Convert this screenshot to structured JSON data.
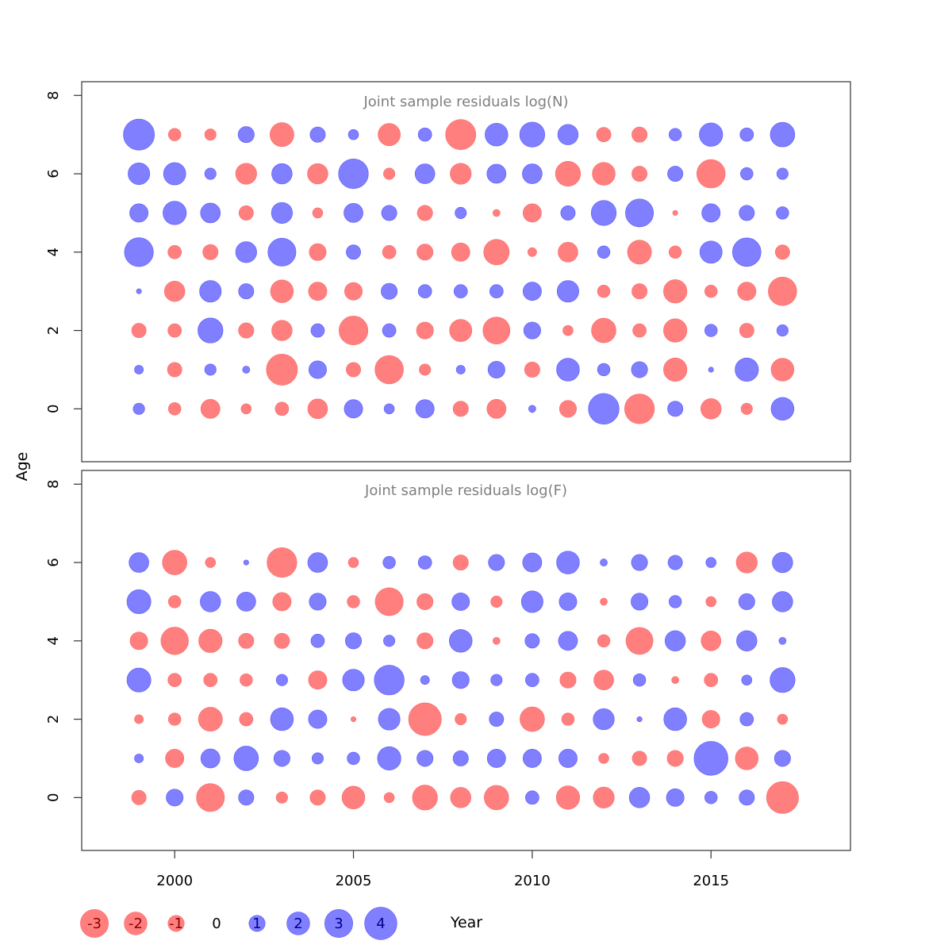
{
  "chart_data": {
    "type": "scatter",
    "xlabel": "Year",
    "ylabel": "Age",
    "x_ticks": [
      2000,
      2005,
      2010,
      2015
    ],
    "y_ticks": [
      0,
      2,
      4,
      6,
      8
    ],
    "xlim": [
      1997.4,
      2018.9
    ],
    "ylim": [
      -1.35,
      8.35
    ],
    "colors": {
      "positive": "#7f7fff",
      "negative": "#ff7f7f",
      "positive_text": "#00008b",
      "negative_text": "#8b0000"
    },
    "years": [
      1999,
      2000,
      2001,
      2002,
      2003,
      2004,
      2005,
      2006,
      2007,
      2008,
      2009,
      2010,
      2011,
      2012,
      2013,
      2014,
      2015,
      2016,
      2017
    ],
    "panels": [
      {
        "title": "Joint sample residuals log(N)",
        "ages": [
          0,
          1,
          2,
          3,
          4,
          5,
          6,
          7
        ],
        "residuals": [
          [
            0.5,
            -0.6,
            -1.4,
            -0.4,
            -0.7,
            -1.5,
            1.3,
            0.4,
            1.3,
            -0.9,
            -1.4,
            0.2,
            -1.1,
            3.6,
            -3.4,
            0.9,
            -1.6,
            -0.5,
            2.0
          ],
          [
            0.3,
            -0.8,
            0.5,
            0.2,
            -3.7,
            1.2,
            -0.8,
            -3.1,
            -0.5,
            0.3,
            1.1,
            -0.9,
            2.0,
            0.6,
            1.0,
            -2.1,
            0.1,
            2.1,
            -2.0
          ],
          [
            -0.8,
            -0.7,
            2.4,
            -0.9,
            -1.6,
            0.7,
            -3.2,
            0.7,
            -1.1,
            -1.9,
            -2.8,
            1.1,
            -0.4,
            -2.3,
            -0.7,
            -2.1,
            0.6,
            -0.8,
            0.5
          ],
          [
            0.1,
            -1.6,
            1.8,
            0.9,
            -2.0,
            -1.3,
            -1.2,
            1.0,
            0.7,
            0.7,
            0.7,
            1.3,
            1.8,
            -0.6,
            -0.9,
            -2.1,
            -0.6,
            -1.3,
            -3.1
          ],
          [
            3.2,
            -0.7,
            -0.9,
            1.7,
            3.0,
            -1.1,
            0.8,
            -0.7,
            -1.0,
            -1.3,
            -2.5,
            -0.3,
            -1.5,
            0.6,
            -2.2,
            -0.6,
            1.9,
            3.1,
            -0.8
          ],
          [
            1.3,
            2.1,
            1.5,
            -0.8,
            1.7,
            -0.4,
            1.4,
            0.9,
            -0.9,
            0.5,
            -0.2,
            -1.3,
            0.8,
            2.4,
            3.0,
            -0.1,
            1.3,
            0.9,
            0.6
          ],
          [
            1.8,
            1.9,
            0.5,
            -1.7,
            1.6,
            -1.6,
            3.4,
            -0.5,
            1.5,
            -1.7,
            1.4,
            1.5,
            -2.4,
            -2.0,
            -0.9,
            0.9,
            -3.1,
            0.6,
            0.5
          ],
          [
            3.7,
            -0.6,
            -0.5,
            1.0,
            -2.2,
            0.9,
            0.4,
            -1.9,
            0.7,
            -3.5,
            2.0,
            2.4,
            1.6,
            -0.8,
            -0.9,
            0.6,
            2.1,
            0.7,
            2.3
          ]
        ]
      },
      {
        "title": "Joint sample residuals log(F)",
        "ages": [
          0,
          1,
          2,
          3,
          4,
          5,
          6
        ],
        "residuals": [
          [
            -0.8,
            1.1,
            -3.0,
            0.9,
            -0.5,
            -0.9,
            -2.0,
            -0.4,
            -2.4,
            -1.6,
            -2.3,
            0.7,
            -2.1,
            -1.7,
            1.6,
            1.2,
            0.6,
            0.9,
            -3.9
          ],
          [
            0.3,
            -1.3,
            1.4,
            2.3,
            1.0,
            0.5,
            0.6,
            2.1,
            1.0,
            0.9,
            1.3,
            1.3,
            1.3,
            -0.4,
            -0.8,
            -1.0,
            4.4,
            -2.0,
            1.0
          ],
          [
            -0.3,
            -0.6,
            -2.2,
            -0.7,
            2.0,
            1.3,
            -0.1,
            1.8,
            -4.1,
            -0.5,
            0.8,
            -2.3,
            -0.6,
            1.7,
            0.1,
            2.0,
            -1.2,
            0.7,
            -0.4
          ],
          [
            2.2,
            -0.7,
            -0.7,
            -0.6,
            0.5,
            -1.3,
            1.8,
            3.4,
            0.3,
            1.1,
            0.5,
            0.7,
            -1.0,
            -1.5,
            0.6,
            -0.2,
            -0.7,
            0.4,
            2.4
          ],
          [
            -1.2,
            -2.9,
            -2.1,
            -0.9,
            -0.9,
            0.7,
            1.0,
            0.5,
            -1.0,
            2.0,
            -0.2,
            0.8,
            1.4,
            -0.6,
            -2.8,
            1.6,
            -1.5,
            1.6,
            0.2
          ],
          [
            2.2,
            -0.6,
            1.6,
            1.4,
            -1.3,
            1.1,
            -0.6,
            -3.0,
            -1.0,
            1.2,
            -0.5,
            1.8,
            1.2,
            -0.2,
            1.1,
            0.6,
            -0.4,
            1.0,
            1.6
          ],
          [
            1.5,
            -2.3,
            -0.4,
            0.1,
            -3.4,
            1.5,
            -0.4,
            0.6,
            0.7,
            -0.9,
            1.0,
            1.4,
            2.0,
            0.2,
            1.0,
            0.8,
            0.4,
            -1.7,
            1.6
          ]
        ]
      }
    ],
    "legend": {
      "entries": [
        {
          "value": -3,
          "label": "-3"
        },
        {
          "value": -2,
          "label": "-2"
        },
        {
          "value": -1,
          "label": "-1"
        },
        {
          "value": 0,
          "label": "0"
        },
        {
          "value": 1,
          "label": "1"
        },
        {
          "value": 2,
          "label": "2"
        },
        {
          "value": 3,
          "label": "3"
        },
        {
          "value": 4,
          "label": "4"
        }
      ],
      "placement": "bottom"
    }
  }
}
